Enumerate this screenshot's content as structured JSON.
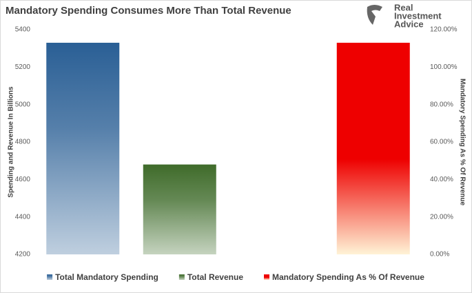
{
  "logo": [
    "Real",
    "Investment",
    "Advice"
  ],
  "chart_data": {
    "type": "bar",
    "title": "Mandatory Spending Consumes More Than Total Revenue",
    "y_label": "Spending and Revenue In Billions",
    "y2_label": "Mandatory Spending As % Of Revenue",
    "categories": [
      null
    ],
    "series": [
      {
        "name": "Total Mandatory Spending",
        "color": "#2a5f95",
        "values": [
          5330
        ]
      },
      {
        "name": "Total Revenue",
        "color": "#3f6b2a",
        "values": [
          4680
        ]
      },
      {
        "name": "Mandatory Spending As % Of Revenue",
        "color": "#ee0000",
        "values": [
          113
        ],
        "axis": "y2"
      }
    ],
    "ylim": [
      4200,
      5400
    ],
    "yticks": [
      4200,
      4400,
      4600,
      4800,
      5000,
      5200,
      5400
    ],
    "y2lim": [
      0,
      120
    ],
    "y2ticks": [
      {
        "value": 0,
        "label": "0.00%"
      },
      {
        "value": 20,
        "label": "20.00%"
      },
      {
        "value": 40,
        "label": "40.00%"
      },
      {
        "value": 60,
        "label": "60.00%"
      },
      {
        "value": 80,
        "label": "80.00%"
      },
      {
        "value": 100,
        "label": "100.00%"
      },
      {
        "value": 120,
        "label": "120.00%"
      }
    ],
    "legend": "bottom"
  }
}
